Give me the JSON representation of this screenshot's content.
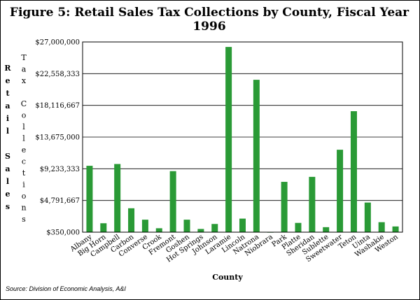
{
  "chart_data": {
    "type": "bar",
    "title": "Figure 5:  Retail Sales Tax Collections by County, Fiscal Year 1996",
    "xlabel": "County",
    "ylabel_outer": "Retail Sales",
    "ylabel_inner": "Tax Collections",
    "source": "Source:  Division of Economic Analysis, A&I",
    "y_ticks": [
      "$350,000",
      "$4,791,667",
      "$9,233,333",
      "$13,675,000",
      "$18,116,667",
      "$22,558,333",
      "$27,000,000"
    ],
    "ylim": [
      350000,
      27000000
    ],
    "grid": true,
    "bar_color": "#2a9a36",
    "categories": [
      "Albany",
      "Big Horn",
      "Campbell",
      "Carbon",
      "Converse",
      "Crook",
      "Fremont",
      "Goshen",
      "Hot Springs",
      "Johnson",
      "Laramie",
      "Lincoln",
      "Natrona",
      "Niobrara",
      "Park",
      "Platte",
      "Sheridan",
      "Sublette",
      "Sweetwater",
      "Teton",
      "Uinta",
      "Washakie",
      "Weston"
    ],
    "values": [
      9650000,
      1600000,
      9900000,
      3700000,
      2100000,
      900000,
      8900000,
      2100000,
      800000,
      1500000,
      26300000,
      2250000,
      21700000,
      360000,
      7400000,
      1650000,
      8100000,
      1050000,
      11900000,
      17300000,
      4500000,
      1750000,
      1150000
    ]
  }
}
